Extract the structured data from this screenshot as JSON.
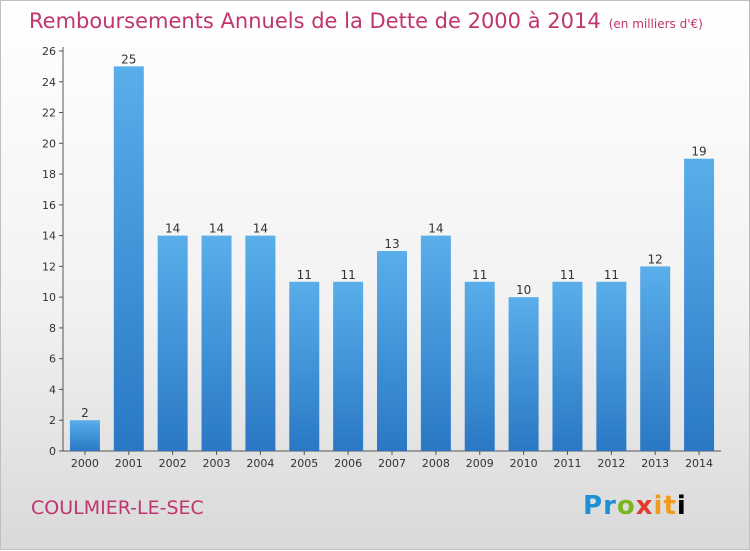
{
  "title": "Remboursements Annuels de la Dette de 2000 à 2014",
  "unit": "(en milliers d'€)",
  "city": "COULMIER-LE-SEC",
  "logo": "Proxiti",
  "colors": {
    "bar": "#4a9fe0",
    "bar_dark": "#2a78c4",
    "title": "#c0346f"
  },
  "chart_data": {
    "type": "bar",
    "categories": [
      "2000",
      "2001",
      "2002",
      "2003",
      "2004",
      "2005",
      "2006",
      "2007",
      "2008",
      "2009",
      "2010",
      "2011",
      "2012",
      "2013",
      "2014"
    ],
    "values": [
      2,
      25,
      14,
      14,
      14,
      11,
      11,
      13,
      14,
      11,
      10,
      11,
      11,
      12,
      19
    ],
    "ylim": [
      0,
      26
    ],
    "yticks": [
      0,
      2,
      4,
      6,
      8,
      10,
      12,
      14,
      16,
      18,
      20,
      22,
      24,
      26
    ],
    "grid": false,
    "legend": "none"
  }
}
